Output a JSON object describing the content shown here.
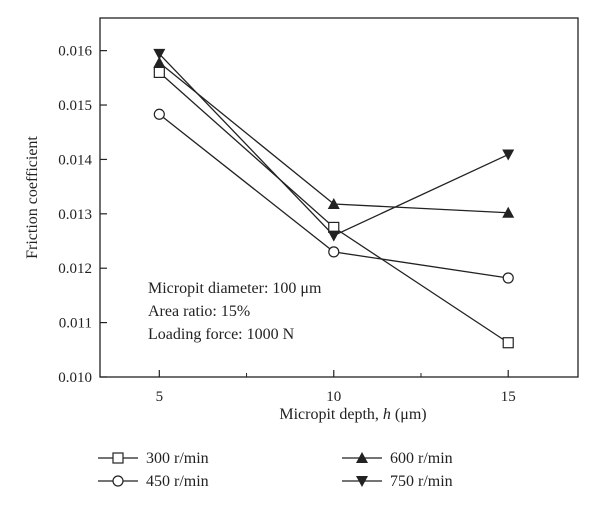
{
  "chart_data": {
    "type": "line",
    "x": [
      5,
      10,
      15
    ],
    "xlim": [
      3.3,
      17.0
    ],
    "ylim": [
      0.01,
      0.0166
    ],
    "x_ticks": [
      "5",
      "10",
      "15"
    ],
    "y_ticks": [
      "0.010",
      "0.011",
      "0.012",
      "0.013",
      "0.014",
      "0.015",
      "0.016"
    ],
    "y_tick_values": [
      0.01,
      0.011,
      0.012,
      0.013,
      0.014,
      0.015,
      0.016
    ],
    "x_minor_ticks": [
      7.5,
      12.5
    ],
    "xlabel_prefix": "Micropit depth, ",
    "xlabel_var": "h",
    "xlabel_unit": " (μm)",
    "ylabel": "Friction coefficient",
    "grid": false,
    "legend_position": "bottom",
    "annotations": [
      "Micropit diameter: 100 μm",
      "Area ratio: 15%",
      "Loading force: 1000 N"
    ],
    "series": [
      {
        "name": "300 r/min",
        "marker": "open-square",
        "values": [
          0.0156,
          0.01275,
          0.01063
        ]
      },
      {
        "name": "450 r/min",
        "marker": "open-circle",
        "values": [
          0.01483,
          0.0123,
          0.01182
        ]
      },
      {
        "name": "600 r/min",
        "marker": "filled-triangle-up",
        "values": [
          0.01578,
          0.01318,
          0.01302
        ]
      },
      {
        "name": "750 r/min",
        "marker": "filled-triangle-down",
        "values": [
          0.01594,
          0.0126,
          0.01409
        ]
      }
    ]
  },
  "colors": {
    "line": "#222222",
    "background": "#ffffff"
  }
}
